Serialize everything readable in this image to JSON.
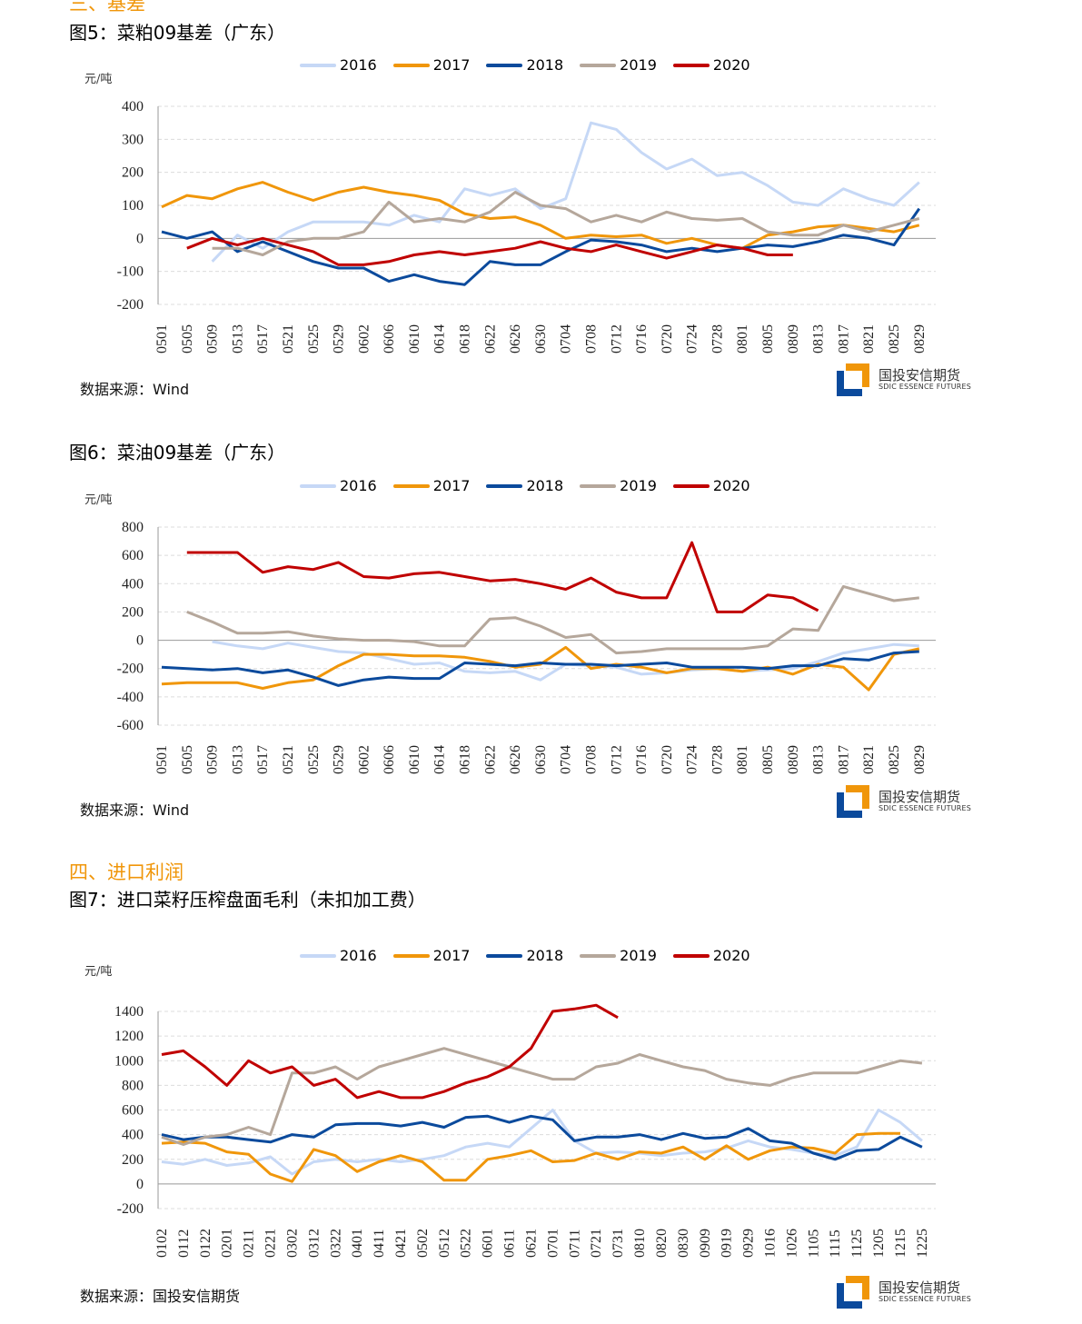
{
  "colors": {
    "2016": "#c6d8f6",
    "2017": "#f0960a",
    "2018": "#0b4a9c",
    "2019": "#b5a79b",
    "2020": "#c00000"
  },
  "sections": {
    "basis": "三、基差",
    "import": "四、进口利润"
  },
  "logo": {
    "cn": "国投安信期货",
    "en": "SDIC ESSENCE FUTURES"
  },
  "charts": [
    {
      "id": "fig5",
      "title": "图5：菜粕09基差（广东）",
      "unit": "元/吨",
      "source": "数据来源：Wind",
      "chart_data": {
        "type": "line",
        "ylim": [
          -200,
          400
        ],
        "yticks": [
          400,
          300,
          200,
          100,
          0,
          -100,
          -200
        ],
        "categories": [
          "0501",
          "0505",
          "0509",
          "0513",
          "0517",
          "0521",
          "0525",
          "0529",
          "0602",
          "0606",
          "0610",
          "0614",
          "0618",
          "0622",
          "0626",
          "0630",
          "0704",
          "0708",
          "0712",
          "0716",
          "0720",
          "0724",
          "0728",
          "0801",
          "0805",
          "0809",
          "0813",
          "0817",
          "0821",
          "0825",
          "0829"
        ],
        "series": [
          {
            "name": "2016",
            "values": [
              null,
              null,
              -70,
              10,
              -30,
              20,
              50,
              50,
              50,
              40,
              70,
              50,
              150,
              130,
              150,
              90,
              120,
              350,
              330,
              260,
              210,
              240,
              190,
              200,
              160,
              110,
              100,
              150,
              120,
              100,
              170
            ]
          },
          {
            "name": "2017",
            "values": [
              95,
              130,
              120,
              150,
              170,
              140,
              115,
              140,
              155,
              140,
              130,
              115,
              75,
              60,
              65,
              40,
              0,
              10,
              5,
              10,
              -15,
              0,
              -20,
              -30,
              10,
              20,
              35,
              40,
              30,
              20,
              40
            ]
          },
          {
            "name": "2018",
            "values": [
              20,
              0,
              20,
              -40,
              -10,
              -40,
              -70,
              -90,
              -90,
              -130,
              -110,
              -130,
              -140,
              -70,
              -80,
              -80,
              -40,
              -5,
              -10,
              -20,
              -40,
              -30,
              -40,
              -30,
              -20,
              -25,
              -10,
              10,
              0,
              -20,
              90
            ]
          },
          {
            "name": "2019",
            "values": [
              null,
              null,
              -30,
              -30,
              -50,
              -10,
              0,
              0,
              20,
              110,
              50,
              60,
              50,
              80,
              140,
              100,
              90,
              50,
              70,
              50,
              80,
              60,
              55,
              60,
              20,
              10,
              10,
              40,
              20,
              40,
              60
            ]
          },
          {
            "name": "2020",
            "values": [
              null,
              -30,
              0,
              -20,
              0,
              -20,
              -40,
              -80,
              -80,
              -70,
              -50,
              -40,
              -50,
              -40,
              -30,
              -10,
              -30,
              -40,
              -20,
              -40,
              -60,
              -40,
              -20,
              -30,
              -50,
              -50,
              null,
              null,
              null,
              null,
              null
            ]
          }
        ]
      }
    },
    {
      "id": "fig6",
      "title": "图6：菜油09基差（广东）",
      "unit": "元/吨",
      "source": "数据来源：Wind",
      "chart_data": {
        "type": "line",
        "ylim": [
          -600,
          800
        ],
        "yticks": [
          800,
          600,
          400,
          200,
          0,
          -200,
          -400,
          -600
        ],
        "categories": [
          "0501",
          "0505",
          "0509",
          "0513",
          "0517",
          "0521",
          "0525",
          "0529",
          "0602",
          "0606",
          "0610",
          "0614",
          "0618",
          "0622",
          "0626",
          "0630",
          "0704",
          "0708",
          "0712",
          "0716",
          "0720",
          "0724",
          "0728",
          "0801",
          "0805",
          "0809",
          "0813",
          "0817",
          "0821",
          "0825",
          "0829"
        ],
        "series": [
          {
            "name": "2016",
            "values": [
              null,
              null,
              -10,
              -40,
              -60,
              -20,
              -50,
              -80,
              -90,
              -130,
              -170,
              -160,
              -220,
              -230,
              -220,
              -280,
              -170,
              -180,
              -190,
              -240,
              -230,
              -210,
              -200,
              -220,
              -210,
              -200,
              -150,
              -90,
              -60,
              -30,
              -40
            ]
          },
          {
            "name": "2017",
            "values": [
              -310,
              -300,
              -300,
              -300,
              -340,
              -300,
              -280,
              -180,
              -100,
              -100,
              -110,
              -110,
              -120,
              -150,
              -190,
              -170,
              -50,
              -200,
              -170,
              -190,
              -230,
              -200,
              -200,
              -220,
              -190,
              -240,
              -170,
              -190,
              -350,
              -100,
              -60
            ]
          },
          {
            "name": "2018",
            "values": [
              -190,
              -200,
              -210,
              -200,
              -230,
              -210,
              -260,
              -320,
              -280,
              -260,
              -270,
              -270,
              -160,
              -170,
              -180,
              -160,
              -170,
              -170,
              -180,
              -170,
              -160,
              -190,
              -190,
              -190,
              -200,
              -180,
              -180,
              -130,
              -140,
              -90,
              -80
            ]
          },
          {
            "name": "2019",
            "values": [
              null,
              200,
              130,
              50,
              50,
              60,
              30,
              10,
              0,
              0,
              -10,
              -40,
              -40,
              150,
              160,
              100,
              20,
              40,
              -90,
              -80,
              -60,
              -60,
              -60,
              -60,
              -40,
              80,
              70,
              380,
              330,
              280,
              300
            ]
          },
          {
            "name": "2020",
            "values": [
              null,
              620,
              620,
              620,
              480,
              520,
              500,
              550,
              450,
              440,
              470,
              480,
              450,
              420,
              430,
              400,
              360,
              440,
              340,
              300,
              300,
              690,
              200,
              200,
              320,
              300,
              210,
              null,
              null,
              null,
              null
            ]
          }
        ]
      }
    },
    {
      "id": "fig7",
      "title": "图7：进口菜籽压榨盘面毛利（未扣加工费）",
      "unit": "元/吨",
      "source": "数据来源：国投安信期货",
      "chart_data": {
        "type": "line",
        "ylim": [
          -200,
          1400
        ],
        "yticks": [
          1400,
          1200,
          1000,
          800,
          600,
          400,
          200,
          0,
          -200
        ],
        "categories": [
          "0102",
          "0112",
          "0122",
          "0201",
          "0211",
          "0221",
          "0302",
          "0312",
          "0322",
          "0401",
          "0411",
          "0421",
          "0502",
          "0512",
          "0522",
          "0601",
          "0611",
          "0621",
          "0701",
          "0711",
          "0721",
          "0731",
          "0810",
          "0820",
          "0830",
          "0909",
          "0919",
          "0929",
          "1016",
          "1026",
          "1105",
          "1115",
          "1125",
          "1205",
          "1215",
          "1225"
        ],
        "series": [
          {
            "name": "2016",
            "values": [
              180,
              160,
              200,
              150,
              170,
              220,
              80,
              180,
              200,
              180,
              200,
              180,
              200,
              230,
              300,
              330,
              300,
              450,
              600,
              350,
              250,
              260,
              250,
              230,
              250,
              260,
              290,
              350,
              300,
              280,
              250,
              230,
              300,
              600,
              500,
              350
            ]
          },
          {
            "name": "2017",
            "values": [
              330,
              340,
              330,
              260,
              240,
              80,
              20,
              280,
              230,
              100,
              180,
              230,
              180,
              30,
              30,
              200,
              230,
              270,
              180,
              190,
              250,
              200,
              260,
              250,
              300,
              200,
              310,
              200,
              270,
              300,
              290,
              250,
              400,
              410,
              410,
              null
            ]
          },
          {
            "name": "2018",
            "values": [
              400,
              360,
              380,
              380,
              360,
              340,
              400,
              380,
              480,
              490,
              490,
              470,
              500,
              460,
              540,
              550,
              500,
              550,
              520,
              350,
              380,
              380,
              400,
              360,
              410,
              370,
              380,
              450,
              350,
              330,
              250,
              200,
              270,
              280,
              380,
              300
            ]
          },
          {
            "name": "2019",
            "values": [
              380,
              320,
              380,
              400,
              460,
              400,
              900,
              900,
              950,
              850,
              950,
              1000,
              1050,
              1100,
              1050,
              1000,
              950,
              900,
              850,
              850,
              950,
              980,
              1050,
              1000,
              950,
              920,
              850,
              820,
              800,
              860,
              900,
              900,
              900,
              950,
              1000,
              980
            ]
          },
          {
            "name": "2020",
            "values": [
              1050,
              1080,
              950,
              800,
              1000,
              900,
              950,
              800,
              850,
              700,
              750,
              700,
              700,
              750,
              820,
              870,
              950,
              1100,
              1400,
              1420,
              1450,
              1350,
              null,
              null,
              null,
              null,
              null,
              null,
              null,
              null,
              null,
              null,
              null,
              null,
              null,
              null
            ]
          }
        ]
      }
    }
  ]
}
